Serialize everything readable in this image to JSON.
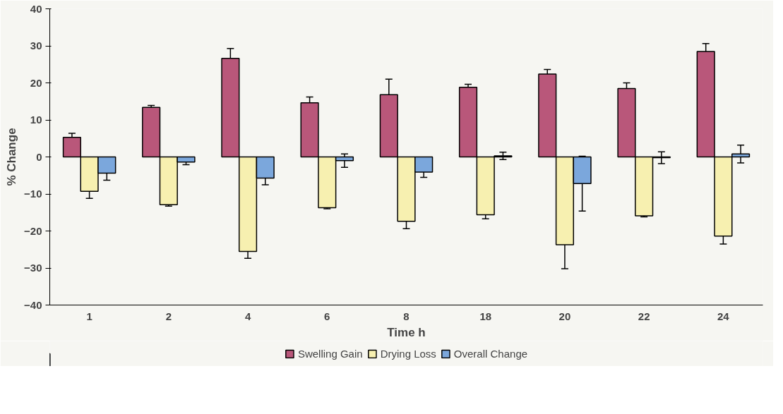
{
  "chart_data": {
    "type": "bar",
    "xlabel": "Time h",
    "ylabel": "% Change",
    "categories": [
      "1",
      "2",
      "4",
      "6",
      "8",
      "18",
      "20",
      "22",
      "24"
    ],
    "series": [
      {
        "name": "Swelling Gain",
        "color": "#b9577a",
        "values": [
          5.3,
          13.4,
          26.6,
          14.6,
          16.8,
          18.8,
          22.4,
          18.5,
          28.5
        ],
        "errors": [
          1.1,
          0.5,
          2.7,
          1.6,
          4.2,
          0.8,
          1.2,
          1.5,
          2.1
        ]
      },
      {
        "name": "Drying Loss",
        "color": "#f7f0b0",
        "values": [
          -9.3,
          -12.9,
          -25.5,
          -13.7,
          -17.4,
          -15.6,
          -23.7,
          -15.9,
          -21.4
        ],
        "errors": [
          1.9,
          0.4,
          1.9,
          0.3,
          2.0,
          1.1,
          6.5,
          0.3,
          2.1
        ]
      },
      {
        "name": "Overall Change",
        "color": "#7ba7dc",
        "values": [
          -4.4,
          -1.4,
          -5.7,
          -1.0,
          -4.1,
          0.3,
          -7.2,
          -0.2,
          0.8
        ],
        "errors": [
          1.9,
          0.7,
          1.8,
          1.8,
          1.4,
          1.0,
          7.4,
          1.6,
          2.4
        ]
      }
    ],
    "ylim": [
      -40,
      40
    ],
    "yticks": [
      -40,
      -30,
      -20,
      -10,
      0,
      10,
      20,
      30,
      40
    ],
    "grid": false,
    "legend": "bottom"
  }
}
